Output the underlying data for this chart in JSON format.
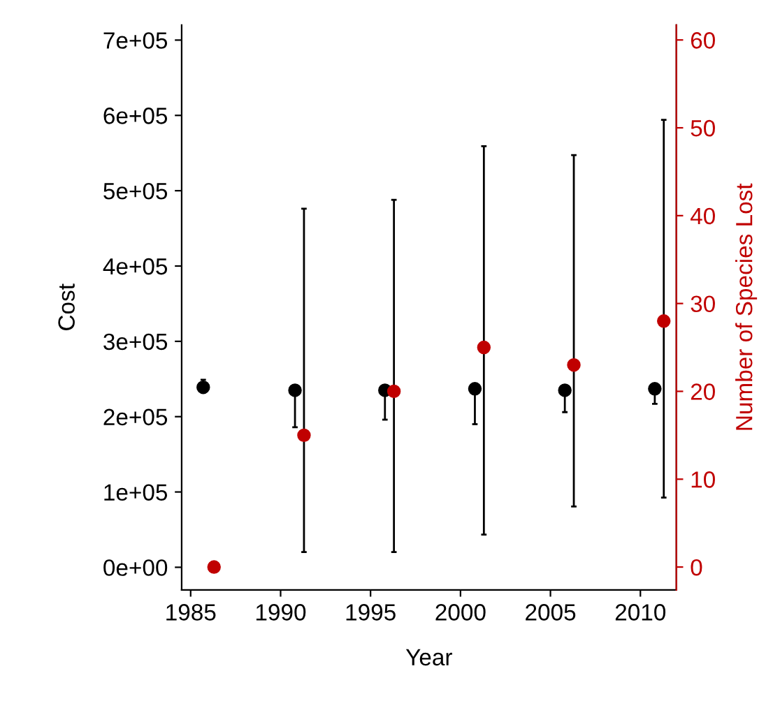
{
  "chart_data": {
    "type": "scatter",
    "xlabel": "Year",
    "ylabel": "Cost",
    "y2label": "Number of Species Lost",
    "xlim": [
      1984.5,
      2012
    ],
    "xticks": [
      1985,
      1990,
      1995,
      2000,
      2005,
      2010
    ],
    "ylim": [
      -30000,
      720000
    ],
    "yticks": [
      {
        "value": 0,
        "label": "0e+00"
      },
      {
        "value": 100000,
        "label": "1e+05"
      },
      {
        "value": 200000,
        "label": "2e+05"
      },
      {
        "value": 300000,
        "label": "3e+05"
      },
      {
        "value": 400000,
        "label": "4e+05"
      },
      {
        "value": 500000,
        "label": "5e+05"
      },
      {
        "value": 600000,
        "label": "6e+05"
      },
      {
        "value": 700000,
        "label": "7e+05"
      }
    ],
    "y2lim": [
      -2.6,
      61.7
    ],
    "y2ticks": [
      0,
      10,
      20,
      30,
      40,
      50,
      60
    ],
    "marker": "circle",
    "grid": false,
    "series": [
      {
        "color": "#000000",
        "x": [
          1985.7,
          1990.8,
          1995.8,
          2000.8,
          2005.8,
          2010.8
        ],
        "values": [
          239000,
          235000,
          235000,
          237000,
          235000,
          237000
        ],
        "errors": [
          [
            236000,
            249000
          ],
          [
            186000,
            235000
          ],
          [
            196000,
            235000
          ],
          [
            190000,
            237000
          ],
          [
            206000,
            235000
          ],
          [
            217000,
            237000
          ]
        ]
      },
      {
        "color": "#c00000",
        "axis": "y2",
        "x": [
          1986.3,
          1991.3,
          1996.3,
          2001.3,
          2006.3,
          2011.3
        ],
        "values": [
          0,
          15,
          20,
          25,
          23,
          28
        ],
        "errors": [
          null,
          [
            1.7,
            40.8
          ],
          [
            1.7,
            41.8
          ],
          [
            3.7,
            47.9
          ],
          [
            6.9,
            46.9
          ],
          [
            7.9,
            50.9
          ]
        ]
      }
    ]
  }
}
